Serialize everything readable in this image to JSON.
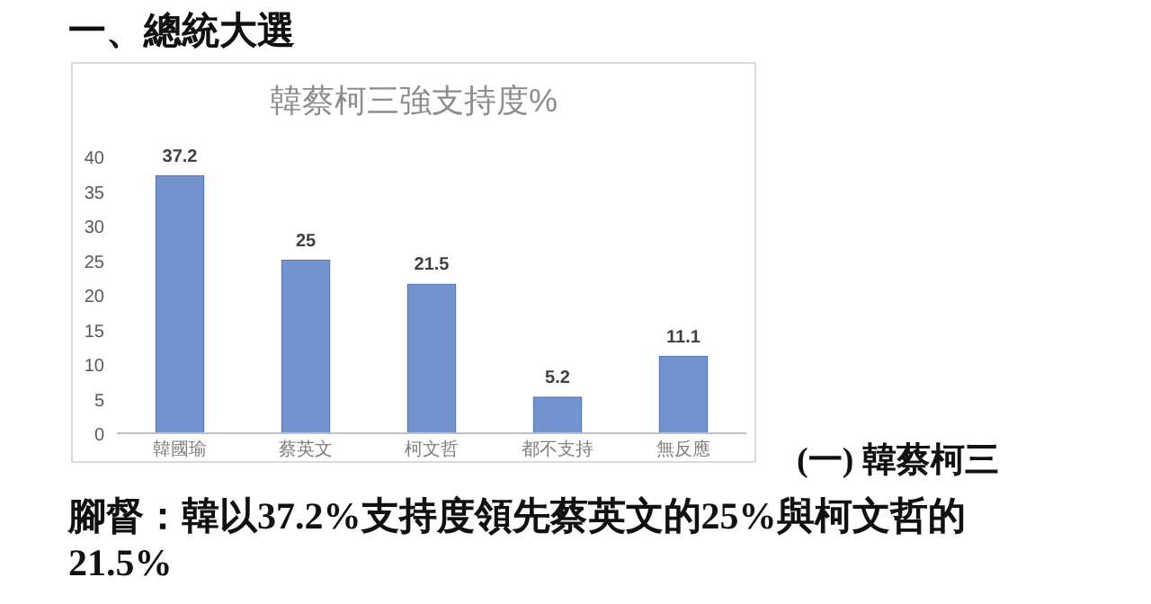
{
  "chart_data": {
    "type": "bar",
    "title": "韓蔡柯三強支持度%",
    "categories": [
      "韓國瑜",
      "蔡英文",
      "柯文哲",
      "都不支持",
      "無反應"
    ],
    "values": [
      37.2,
      25,
      21.5,
      5.2,
      11.1
    ],
    "color": "#7393cf",
    "ylim": [
      0,
      40
    ],
    "yticks": [
      0,
      5,
      10,
      15,
      20,
      25,
      30,
      35,
      40
    ],
    "data_labels": true,
    "annotations": [
      "一、總統大選",
      "(一) 韓蔡柯三",
      "腳督：韓以37.2%支持度領先蔡英文的25%與柯文哲的21.5%"
    ]
  }
}
